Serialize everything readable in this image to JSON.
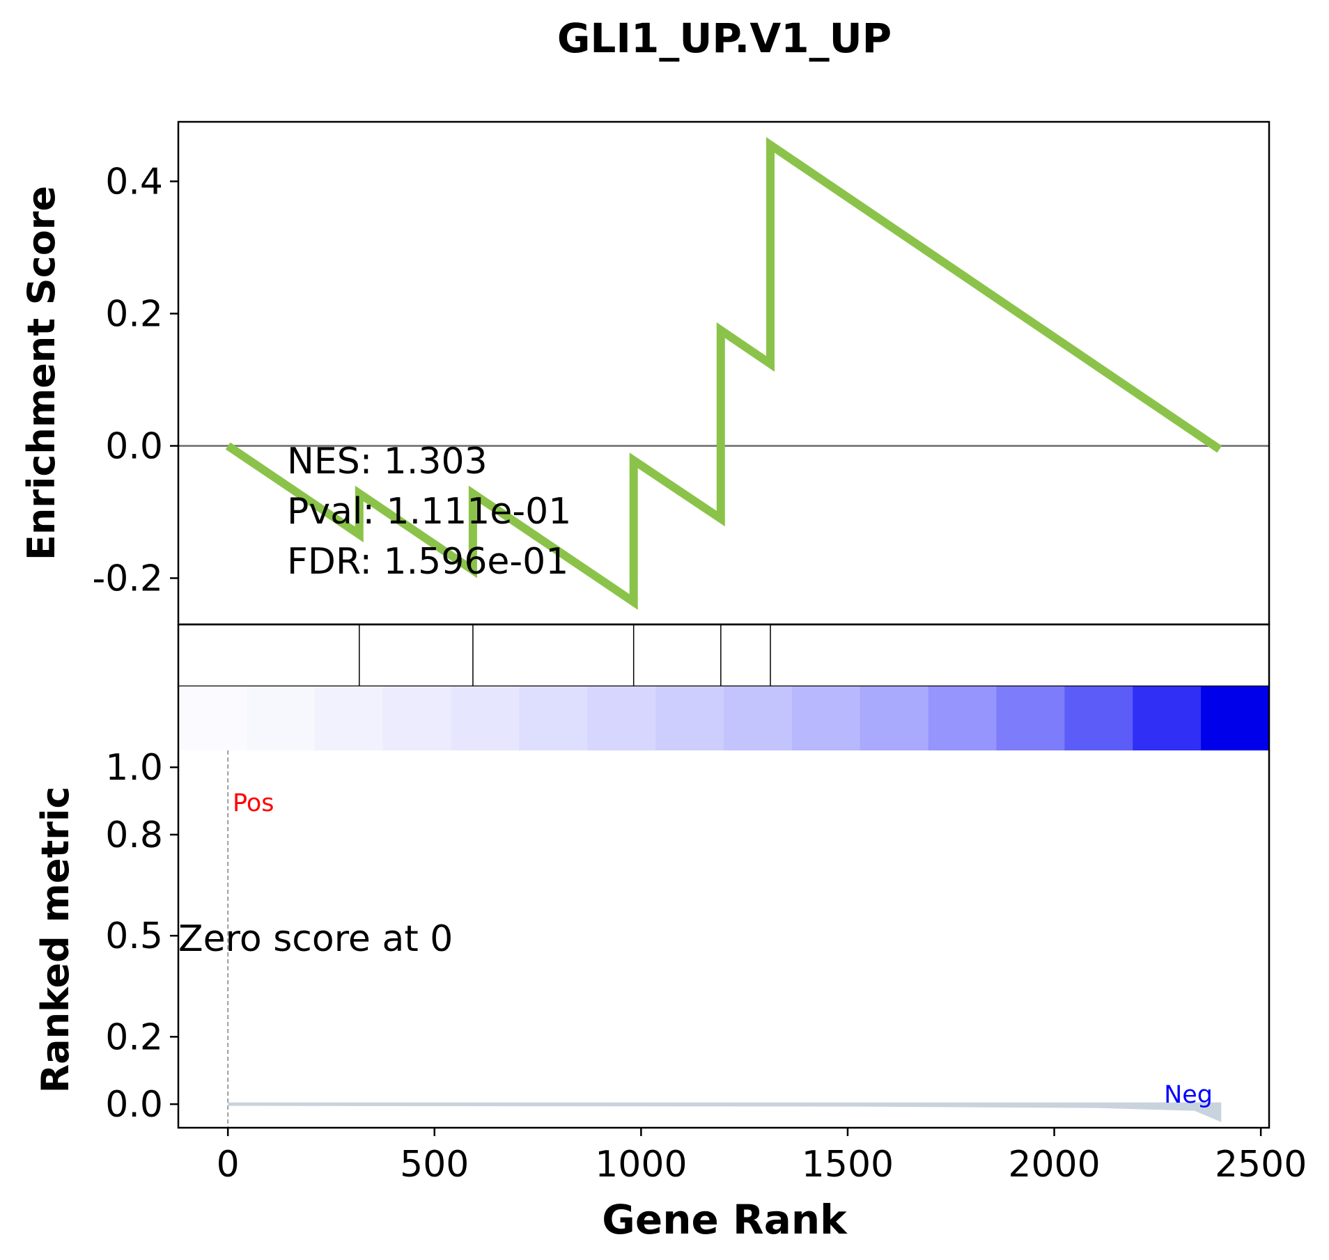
{
  "chart_data": {
    "type": "line",
    "title": "GLI1_UP.V1_UP",
    "xlabel": "Gene Rank",
    "es_panel": {
      "ylabel": "Enrichment Score",
      "yticks": [
        0.4,
        0.2,
        0.0,
        -0.2
      ],
      "ytick_labels": [
        "0.4",
        "0.2",
        "0.0",
        "-0.2"
      ],
      "ylim": [
        -0.27,
        0.49
      ],
      "line_color": "#8bc34a",
      "baseline_color": "#808080",
      "series": [
        {
          "x": [
            0,
            318,
            318,
            593,
            593,
            982,
            982,
            1193,
            1193,
            1313,
            1313,
            2400
          ],
          "y": [
            0.0,
            -0.134,
            -0.072,
            -0.188,
            -0.072,
            -0.236,
            -0.022,
            -0.11,
            0.175,
            0.124,
            0.455,
            -0.005
          ]
        }
      ],
      "annotations": [
        "NES: 1.303",
        "Pval: 1.111e-01",
        "FDR: 1.596e-01"
      ]
    },
    "hit_panel": {
      "hits": [
        318,
        593,
        982,
        1193,
        1313
      ]
    },
    "ranked_panel": {
      "ylabel": "Ranked metric",
      "yticks": [
        1.0,
        0.8,
        0.5,
        0.2,
        0.0
      ],
      "ytick_labels": [
        "1.0",
        "0.8",
        "0.5",
        "0.2",
        "0.0"
      ],
      "ylim": [
        -0.07,
        1.05
      ],
      "zero_cross_x": 0,
      "pos_label": "Pos",
      "neg_label": "Neg",
      "zero_label": "Zero score at 0",
      "fill_color": "#c9d3de",
      "pos_color": "#ff0000",
      "neg_color": "#0000ff"
    },
    "heatmap_colors": [
      "#fbfbff",
      "#f7f7fe",
      "#f2f2fe",
      "#ececfe",
      "#e6e6fe",
      "#dedefe",
      "#d6d6fe",
      "#cdcdfe",
      "#c3c3fe",
      "#b8b8fe",
      "#a9a9fe",
      "#9595fd",
      "#7d7dfb",
      "#5c5cf9",
      "#2f2ff6",
      "#0000ea"
    ],
    "xticks": [
      0,
      500,
      1000,
      1500,
      2000,
      2500
    ],
    "xtick_labels": [
      "0",
      "500",
      "1000",
      "1500",
      "2000",
      "2500"
    ],
    "xlim": [
      -120,
      2520
    ]
  }
}
